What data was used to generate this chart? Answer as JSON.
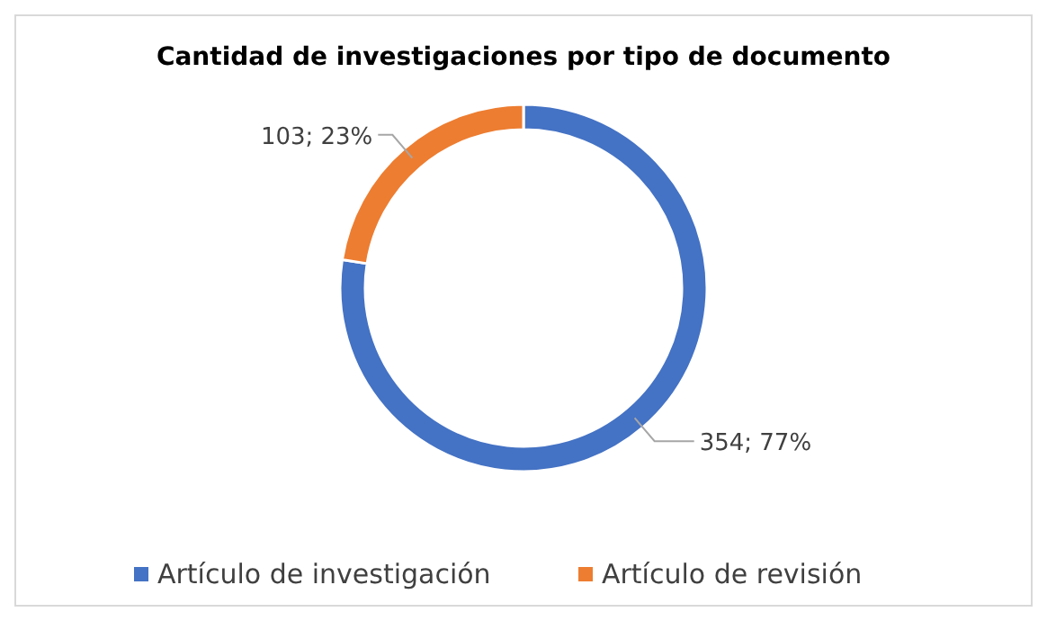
{
  "chart_data": {
    "type": "donut",
    "title": "Cantidad de investigaciones por tipo de documento",
    "categories": [
      "Artículo de investigación",
      "Artículo de revisión"
    ],
    "values": [
      354,
      103
    ],
    "colors": [
      "#4472c4",
      "#ed7d31"
    ],
    "value_labels": [
      "354; 77%",
      "103; 23%"
    ],
    "legend": "bottom"
  }
}
